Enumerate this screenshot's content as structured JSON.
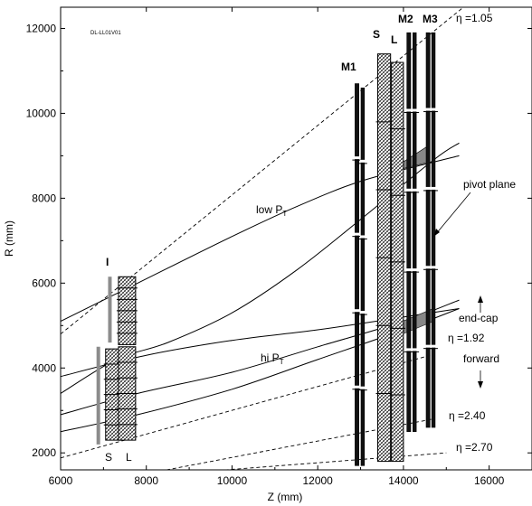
{
  "chart_data": {
    "type": "diagram",
    "xlabel": "Z (mm)",
    "ylabel": "R (mm)",
    "xlim": [
      6000,
      17000
    ],
    "ylim": [
      1600,
      12500
    ],
    "xticks": [
      6000,
      8000,
      10000,
      12000,
      14000,
      16000
    ],
    "yticks": [
      2000,
      4000,
      6000,
      8000,
      10000,
      12000
    ],
    "drawing_id": "DL-LL01V01",
    "eta_lines": [
      {
        "label": "η =1.05",
        "points": [
          [
            6000,
            4800
          ],
          [
            15400,
            12500
          ]
        ]
      },
      {
        "label": "η =1.92",
        "points": [
          [
            6000,
            1880
          ],
          [
            14700,
            4320
          ]
        ]
      },
      {
        "label": "η =2.40",
        "points": [
          [
            6000,
            1120
          ],
          [
            14700,
            2800
          ]
        ]
      },
      {
        "label": "η =2.70",
        "points": [
          [
            6000,
            1300
          ],
          [
            15000,
            2000
          ]
        ]
      }
    ],
    "track_curves": [
      {
        "points": [
          [
            6000,
            5100
          ],
          [
            7800,
            6000
          ],
          [
            10000,
            7100
          ],
          [
            11500,
            7800
          ],
          [
            13000,
            8400
          ],
          [
            14700,
            8850
          ],
          [
            15300,
            9000
          ]
        ]
      },
      {
        "points": [
          [
            6000,
            3400
          ],
          [
            7300,
            4200
          ],
          [
            8500,
            4600
          ],
          [
            10000,
            5300
          ],
          [
            11500,
            6300
          ],
          [
            13000,
            7500
          ],
          [
            14700,
            8900
          ],
          [
            15300,
            9300
          ]
        ]
      },
      {
        "points": [
          [
            6000,
            2900
          ],
          [
            7800,
            3400
          ],
          [
            10000,
            3900
          ],
          [
            12000,
            4500
          ],
          [
            14000,
            5100
          ],
          [
            15300,
            5600
          ]
        ]
      },
      {
        "points": [
          [
            6000,
            2500
          ],
          [
            7800,
            2900
          ],
          [
            10000,
            3500
          ],
          [
            12000,
            4200
          ],
          [
            14000,
            4900
          ],
          [
            15300,
            5400
          ]
        ]
      },
      {
        "points": [
          [
            6000,
            3800
          ],
          [
            8000,
            4300
          ],
          [
            10000,
            4650
          ],
          [
            12000,
            4900
          ],
          [
            14000,
            5200
          ],
          [
            15300,
            5400
          ]
        ]
      }
    ],
    "shaded_regions": [
      {
        "points": [
          [
            13600,
            8600
          ],
          [
            14600,
            9250
          ],
          [
            14600,
            8850
          ]
        ]
      },
      {
        "points": [
          [
            13500,
            4900
          ],
          [
            14700,
            5400
          ],
          [
            14700,
            5100
          ],
          [
            13500,
            4600
          ]
        ]
      }
    ],
    "chambers": [
      {
        "name": "I-S",
        "type": "hatched",
        "x": [
          7050,
          7450
        ],
        "r": [
          2300,
          4450
        ]
      },
      {
        "name": "I-L",
        "type": "hatched",
        "x": [
          7350,
          7750
        ],
        "r": [
          2300,
          4500
        ]
      },
      {
        "name": "I-upper",
        "type": "hatched",
        "x": [
          7350,
          7750
        ],
        "r": [
          4550,
          6150
        ]
      },
      {
        "name": "M1-outer",
        "type": "thick",
        "x": [
          12870,
          12960
        ],
        "r": [
          1700,
          10700
        ]
      },
      {
        "name": "M1-inner",
        "type": "thick",
        "x": [
          13010,
          13090
        ],
        "r": [
          1700,
          10600
        ]
      },
      {
        "name": "S",
        "type": "hatched",
        "x": [
          13400,
          13700
        ],
        "r": [
          1800,
          11400
        ]
      },
      {
        "name": "L",
        "type": "hatched",
        "x": [
          13720,
          14000
        ],
        "r": [
          1800,
          11200
        ]
      },
      {
        "name": "M2-a",
        "type": "thick",
        "x": [
          14080,
          14170
        ],
        "r": [
          2500,
          11900
        ]
      },
      {
        "name": "M2-b",
        "type": "thick",
        "x": [
          14220,
          14300
        ],
        "r": [
          2500,
          11900
        ]
      },
      {
        "name": "M3-a",
        "type": "thick",
        "x": [
          14530,
          14620
        ],
        "r": [
          2600,
          11900
        ]
      },
      {
        "name": "M3-b",
        "type": "thick",
        "x": [
          14660,
          14740
        ],
        "r": [
          2600,
          11900
        ]
      }
    ],
    "gray_bars": [
      {
        "x": 6880,
        "r": [
          2200,
          4500
        ]
      },
      {
        "x": 7150,
        "r": [
          4600,
          6150
        ]
      }
    ]
  },
  "labels": {
    "drawing_id": "DL-LL01V01",
    "i_label": "I",
    "s_small": "S",
    "l_small": "L",
    "m1": "M1",
    "s_big": "S",
    "l_big": "L",
    "m2": "M2",
    "m3": "M3",
    "low_pt": "low P",
    "low_pt_sub": "T",
    "hi_pt": "hi P",
    "hi_pt_sub": "T",
    "pivot": "pivot plane",
    "endcap": "end-cap",
    "forward": "forward",
    "eta105": "η =1.05",
    "eta192": "η =1.92",
    "eta240": "η =2.40",
    "eta270": "η =2.70",
    "xlabel": "Z (mm)",
    "ylabel": "R (mm)"
  }
}
